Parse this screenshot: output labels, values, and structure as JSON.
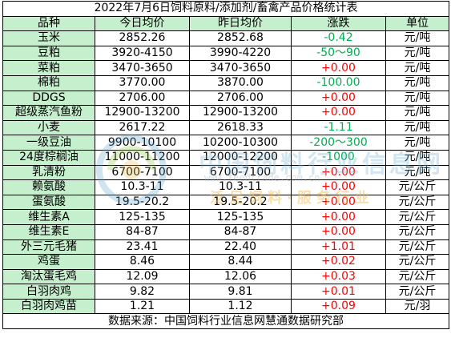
{
  "title": "2022年7月6日饲料原料/添加剂/畜禽产品价格统计表",
  "headers": [
    "品种",
    "今日均价",
    "昨日均价",
    "涨跌",
    "单位"
  ],
  "rows": [
    {
      "name": "玉米",
      "today": "2852.26",
      "yesterday": "2852.68",
      "change": "-0.42",
      "dir": "down",
      "unit": "元/吨"
    },
    {
      "name": "豆粕",
      "today": "3920-4150",
      "yesterday": "3990-4220",
      "change": "-50～90",
      "dir": "down",
      "unit": "元/吨"
    },
    {
      "name": "菜粕",
      "today": "3470-3650",
      "yesterday": "3470-3650",
      "change": "+0.00",
      "dir": "up",
      "unit": "元/吨"
    },
    {
      "name": "棉粕",
      "today": "3770.00",
      "yesterday": "3870.00",
      "change": "-100.00",
      "dir": "down",
      "unit": "元/吨"
    },
    {
      "name": "DDGS",
      "today": "2706.00",
      "yesterday": "2706.00",
      "change": "+0.00",
      "dir": "up",
      "unit": "元/吨"
    },
    {
      "name": "超级蒸汽鱼粉",
      "today": "12900-13200",
      "yesterday": "12900-13200",
      "change": "+0.00",
      "dir": "up",
      "unit": "元/吨"
    },
    {
      "name": "小麦",
      "today": "2617.22",
      "yesterday": "2618.33",
      "change": "-1.11",
      "dir": "down",
      "unit": "元/吨"
    },
    {
      "name": "一级豆油",
      "today": "9900-10100",
      "yesterday": "10200-10300",
      "change": "-200～300",
      "dir": "down",
      "unit": "元/吨"
    },
    {
      "name": "24度棕榈油",
      "today": "11000-11200",
      "yesterday": "12000-12200",
      "change": "-1000",
      "dir": "down",
      "unit": "元/吨"
    },
    {
      "name": "乳清粉",
      "today": "6700-7100",
      "yesterday": "6700-7100",
      "change": "+0.00",
      "dir": "up",
      "unit": "元/吨"
    },
    {
      "name": "赖氨酸",
      "today": "10.3-11",
      "yesterday": "10.3-11",
      "change": "+0.00",
      "dir": "up",
      "unit": "元/公斤"
    },
    {
      "name": "蛋氨酸",
      "today": "19.5-20.2",
      "yesterday": "19.5-20.2",
      "change": "+0.00",
      "dir": "up",
      "unit": "元/公斤"
    },
    {
      "name": "维生素A",
      "today": "125-135",
      "yesterday": "125-135",
      "change": "+0.00",
      "dir": "up",
      "unit": "元/公斤"
    },
    {
      "name": "维生素E",
      "today": "84-87",
      "yesterday": "84-87",
      "change": "+0.00",
      "dir": "up",
      "unit": "元/公斤"
    },
    {
      "name": "外三元毛猪",
      "today": "23.41",
      "yesterday": "22.40",
      "change": "+1.01",
      "dir": "up",
      "unit": "元/公斤"
    },
    {
      "name": "鸡蛋",
      "today": "8.46",
      "yesterday": "8.44",
      "change": "+0.02",
      "dir": "up",
      "unit": "元/公斤"
    },
    {
      "name": "淘汰蛋毛鸡",
      "today": "12.09",
      "yesterday": "12.06",
      "change": "+0.03",
      "dir": "up",
      "unit": "元/公斤"
    },
    {
      "name": "白羽肉鸡",
      "today": "9.82",
      "yesterday": "9.81",
      "change": "+0.01",
      "dir": "up",
      "unit": "元/公斤"
    },
    {
      "name": "白羽肉鸡苗",
      "today": "1.21",
      "yesterday": "1.12",
      "change": "+0.09",
      "dir": "up",
      "unit": "元/羽"
    }
  ],
  "footer": "数据来源：中国饲料行业信息网慧通数据研究部",
  "watermark": {
    "line1": "中国饲料行业信息网",
    "line2": "www.feedtrade.com.cn",
    "line3": "泛足饲料·服务行业"
  },
  "colors": {
    "up": "#ff0000",
    "down": "#00b050",
    "header_bg": "#c6efce"
  }
}
